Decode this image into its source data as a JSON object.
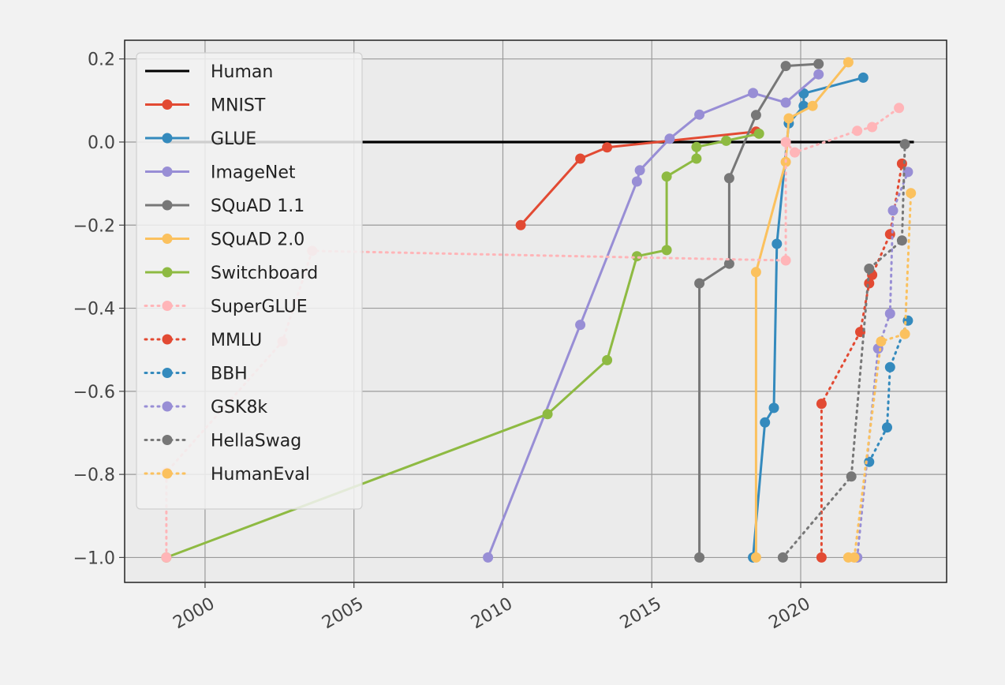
{
  "chart_data": {
    "type": "line",
    "title": "",
    "xlabel": "",
    "ylabel": "",
    "xlim": [
      1997.3,
      2024.9
    ],
    "ylim": [
      -1.06,
      0.245
    ],
    "xticks": [
      2000,
      2005,
      2010,
      2015,
      2020
    ],
    "yticks": [
      0.2,
      0.0,
      -0.2,
      -0.4,
      -0.6,
      -0.8,
      -1.0
    ],
    "ytick_labels": [
      "0.2",
      "0.0",
      "−0.2",
      "−0.4",
      "−0.6",
      "−0.8",
      "−1.0"
    ],
    "grid": true,
    "legend_position": "top-left",
    "series": [
      {
        "name": "Human",
        "color": "#000000",
        "style": "solid",
        "markers": false,
        "x": [
          1998.7,
          2023.8
        ],
        "y": [
          0.0,
          0.0
        ]
      },
      {
        "name": "MNIST",
        "color": "#E24A33",
        "style": "solid",
        "markers": true,
        "x": [
          2010.6,
          2012.6,
          2013.5,
          2018.5
        ],
        "y": [
          -0.2,
          -0.04,
          -0.013,
          0.025
        ]
      },
      {
        "name": "GLUE",
        "color": "#348ABD",
        "style": "solid",
        "markers": true,
        "x": [
          2018.4,
          2018.8,
          2019.1,
          2019.2,
          2019.6,
          2020.1,
          2020.1,
          2022.1
        ],
        "y": [
          -1.0,
          -0.675,
          -0.64,
          -0.245,
          0.045,
          0.087,
          0.117,
          0.155
        ]
      },
      {
        "name": "ImageNet",
        "color": "#988ED5",
        "style": "solid",
        "markers": true,
        "x": [
          2009.5,
          2012.6,
          2014.5,
          2014.6,
          2015.6,
          2016.6,
          2018.4,
          2019.5,
          2020.6
        ],
        "y": [
          -1.0,
          -0.44,
          -0.095,
          -0.068,
          0.008,
          0.066,
          0.118,
          0.095,
          0.163
        ]
      },
      {
        "name": "SQuAD 1.1",
        "color": "#777777",
        "style": "solid",
        "markers": true,
        "x": [
          2016.6,
          2016.6,
          2017.6,
          2017.6,
          2018.5,
          2019.5,
          2020.6
        ],
        "y": [
          -1.0,
          -0.34,
          -0.293,
          -0.087,
          0.065,
          0.183,
          0.188
        ]
      },
      {
        "name": "SQuAD 2.0",
        "color": "#FBC15E",
        "style": "solid",
        "markers": true,
        "x": [
          2018.5,
          2018.5,
          2019.5,
          2019.6,
          2020.4,
          2021.6
        ],
        "y": [
          -1.0,
          -0.313,
          -0.048,
          0.057,
          0.087,
          0.192
        ]
      },
      {
        "name": "Switchboard",
        "color": "#8EBA42",
        "style": "solid",
        "markers": true,
        "x": [
          1998.7,
          2011.5,
          2013.5,
          2014.5,
          2015.5,
          2015.5,
          2016.5,
          2016.5,
          2017.5,
          2018.6
        ],
        "y": [
          -1.0,
          -0.655,
          -0.525,
          -0.275,
          -0.26,
          -0.083,
          -0.04,
          -0.012,
          0.003,
          0.02
        ]
      },
      {
        "name": "SuperGLUE",
        "color": "#FFB5B8",
        "style": "dotted",
        "markers": true,
        "x": [
          1998.7,
          1998.7,
          2002.6,
          2003.6,
          2019.5,
          2019.5,
          2019.8,
          2021.9,
          2022.4,
          2023.3
        ],
        "y": [
          -1.0,
          -0.795,
          -0.48,
          -0.262,
          -0.285,
          0.0,
          -0.025,
          0.027,
          0.036,
          0.082
        ]
      },
      {
        "name": "MMLU",
        "color": "#E24A33",
        "style": "dotted",
        "markers": true,
        "x": [
          2020.7,
          2020.7,
          2022.0,
          2022.3,
          2022.4,
          2023.0,
          2023.4
        ],
        "y": [
          -1.0,
          -0.63,
          -0.457,
          -0.34,
          -0.32,
          -0.222,
          -0.052
        ]
      },
      {
        "name": "BBH",
        "color": "#348ABD",
        "style": "dotted",
        "markers": true,
        "x": [
          2022.3,
          2022.9,
          2023.0,
          2023.6
        ],
        "y": [
          -0.77,
          -0.687,
          -0.542,
          -0.43
        ]
      },
      {
        "name": "GSK8k",
        "color": "#988ED5",
        "style": "dotted",
        "markers": true,
        "x": [
          2021.9,
          2022.6,
          2023.0,
          2023.1,
          2023.6
        ],
        "y": [
          -1.0,
          -0.497,
          -0.413,
          -0.165,
          -0.072
        ]
      },
      {
        "name": "HellaSwag",
        "color": "#777777",
        "style": "dotted",
        "markers": true,
        "x": [
          2019.4,
          2021.7,
          2022.3,
          2023.4,
          2023.5
        ],
        "y": [
          -1.0,
          -0.805,
          -0.305,
          -0.237,
          -0.005
        ]
      },
      {
        "name": "HumanEval",
        "color": "#FBC15E",
        "style": "dotted",
        "markers": true,
        "x": [
          2021.6,
          2021.8,
          2022.7,
          2023.5,
          2023.7
        ],
        "y": [
          -1.0,
          -1.0,
          -0.48,
          -0.462,
          -0.123
        ]
      }
    ]
  }
}
